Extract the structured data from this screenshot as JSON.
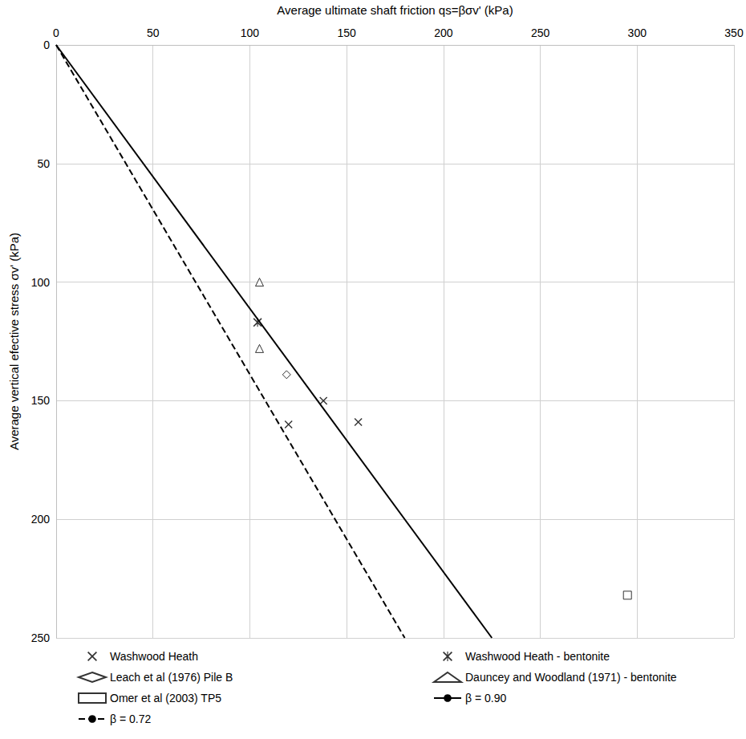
{
  "chart_data": {
    "type": "scatter",
    "x_label": "Average ultimate shaft friction qs=βσv' (kPa)",
    "y_label": "Average vertical efective stress σv' (kPa)",
    "xlim": [
      0,
      350
    ],
    "xticks": [
      0,
      50,
      100,
      150,
      200,
      250,
      300,
      350
    ],
    "ylim": [
      0,
      250
    ],
    "yticks": [
      0,
      50,
      100,
      150,
      200,
      250
    ],
    "grid": true,
    "legend": "bottom",
    "series": [
      {
        "name": "Washwood Heath",
        "type": "scatter",
        "marker": "x",
        "color": "#000000",
        "x": [
          138,
          120,
          156
        ],
        "y": [
          150,
          160,
          159
        ]
      },
      {
        "name": "Washwood Heath - bentonite",
        "type": "scatter",
        "marker": "asterisk",
        "color": "#000000",
        "x": [
          104
        ],
        "y": [
          117
        ]
      },
      {
        "name": "Leach et al (1976) Pile B",
        "type": "scatter",
        "marker": "diamond",
        "color": "#000000",
        "x": [
          119
        ],
        "y": [
          139
        ]
      },
      {
        "name": "Dauncey and Woodland (1971) - bentonite",
        "type": "scatter",
        "marker": "triangle",
        "color": "#000000",
        "x": [
          105,
          105
        ],
        "y": [
          100,
          128
        ]
      },
      {
        "name": "Omer et al (2003) TP5",
        "type": "scatter",
        "marker": "square",
        "color": "#000000",
        "x": [
          295
        ],
        "y": [
          232
        ]
      },
      {
        "name": "β = 0.90",
        "type": "line",
        "line_style": "solid",
        "color": "#000000",
        "x": [
          0,
          225
        ],
        "y": [
          0,
          250
        ]
      },
      {
        "name": "β = 0.72",
        "type": "line",
        "line_style": "dashed",
        "color": "#000000",
        "x": [
          0,
          180
        ],
        "y": [
          0,
          250
        ]
      }
    ]
  }
}
